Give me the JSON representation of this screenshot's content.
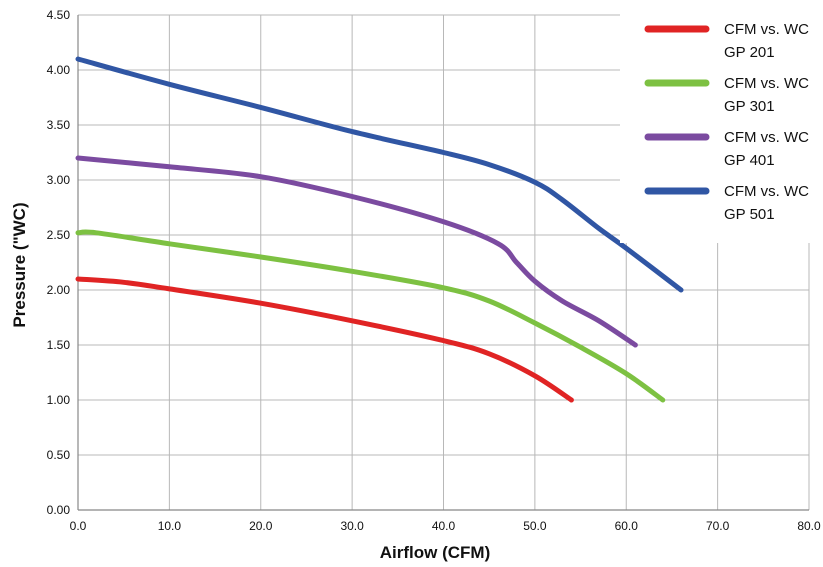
{
  "chart_data": {
    "type": "line",
    "title": "",
    "xlabel": "Airflow (CFM)",
    "ylabel": "Pressure (\"WC)",
    "xlim": [
      0,
      80
    ],
    "ylim": [
      0,
      4.5
    ],
    "x_ticks": [
      "0.0",
      "10.0",
      "20.0",
      "30.0",
      "40.0",
      "50.0",
      "60.0",
      "70.0",
      "80.0"
    ],
    "y_ticks": [
      "0.00",
      "0.50",
      "1.00",
      "1.50",
      "2.00",
      "2.50",
      "3.00",
      "3.50",
      "4.00",
      "4.50"
    ],
    "grid": true,
    "legend_position": "top-right",
    "series": [
      {
        "name_line1": "CFM vs. WC",
        "name_line2": "GP 201",
        "color": "#e02424",
        "points": [
          [
            0,
            2.1
          ],
          [
            5,
            2.07
          ],
          [
            10,
            2.01
          ],
          [
            20,
            1.88
          ],
          [
            30,
            1.72
          ],
          [
            40,
            1.54
          ],
          [
            45,
            1.42
          ],
          [
            50,
            1.22
          ],
          [
            54,
            1.0
          ]
        ]
      },
      {
        "name_line1": "CFM vs. WC",
        "name_line2": "GP 301",
        "color": "#7dc142",
        "points": [
          [
            0,
            2.52
          ],
          [
            2,
            2.52
          ],
          [
            10,
            2.42
          ],
          [
            20,
            2.3
          ],
          [
            30,
            2.17
          ],
          [
            40,
            2.02
          ],
          [
            45,
            1.9
          ],
          [
            50,
            1.7
          ],
          [
            55,
            1.48
          ],
          [
            60,
            1.24
          ],
          [
            64,
            1.0
          ]
        ]
      },
      {
        "name_line1": "CFM vs. WC",
        "name_line2": "GP 401",
        "color": "#7b4ba0",
        "points": [
          [
            0,
            3.2
          ],
          [
            10,
            3.12
          ],
          [
            20,
            3.03
          ],
          [
            30,
            2.85
          ],
          [
            40,
            2.62
          ],
          [
            46,
            2.42
          ],
          [
            48,
            2.25
          ],
          [
            50,
            2.08
          ],
          [
            53,
            1.9
          ],
          [
            57,
            1.72
          ],
          [
            61,
            1.5
          ]
        ]
      },
      {
        "name_line1": "CFM vs. WC",
        "name_line2": "GP 501",
        "color": "#3056a4",
        "points": [
          [
            0,
            4.1
          ],
          [
            10,
            3.87
          ],
          [
            20,
            3.66
          ],
          [
            30,
            3.44
          ],
          [
            40,
            3.25
          ],
          [
            45,
            3.14
          ],
          [
            50,
            2.98
          ],
          [
            53,
            2.82
          ],
          [
            57,
            2.56
          ],
          [
            60,
            2.38
          ],
          [
            66,
            2.0
          ]
        ]
      }
    ]
  }
}
